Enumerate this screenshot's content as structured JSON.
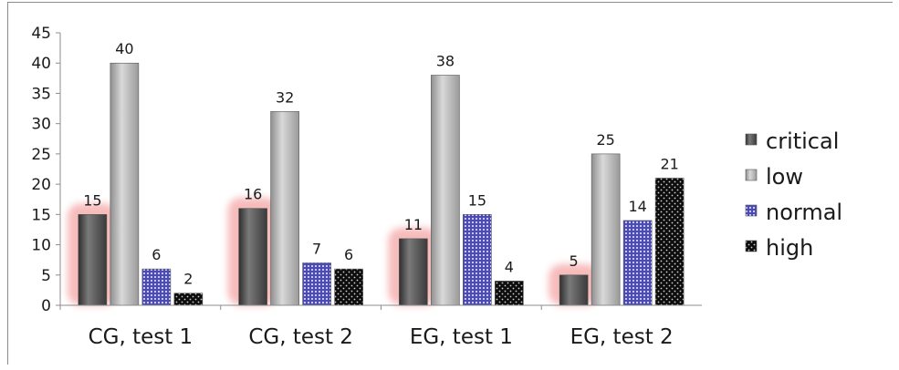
{
  "chart_data": {
    "type": "bar",
    "categories": [
      "CG, test 1",
      "CG, test 2",
      "EG, test 1",
      "EG, test 2"
    ],
    "series": [
      {
        "name": "critical",
        "values": [
          15,
          16,
          11,
          5
        ],
        "color": "#4d4d4d"
      },
      {
        "name": "low",
        "values": [
          40,
          32,
          38,
          25
        ],
        "color": "#a6a6a6"
      },
      {
        "name": "normal",
        "values": [
          6,
          7,
          15,
          14
        ],
        "color": "#5a5ac8"
      },
      {
        "name": "high",
        "values": [
          2,
          6,
          4,
          21
        ],
        "color": "#111111"
      }
    ],
    "ylim": [
      0,
      45
    ],
    "yticks": [
      0,
      5,
      10,
      15,
      20,
      25,
      30,
      35,
      40,
      45
    ],
    "legend_position": "right",
    "grid": false,
    "data_labels": true,
    "highlight_color": "#f4a5a5"
  }
}
